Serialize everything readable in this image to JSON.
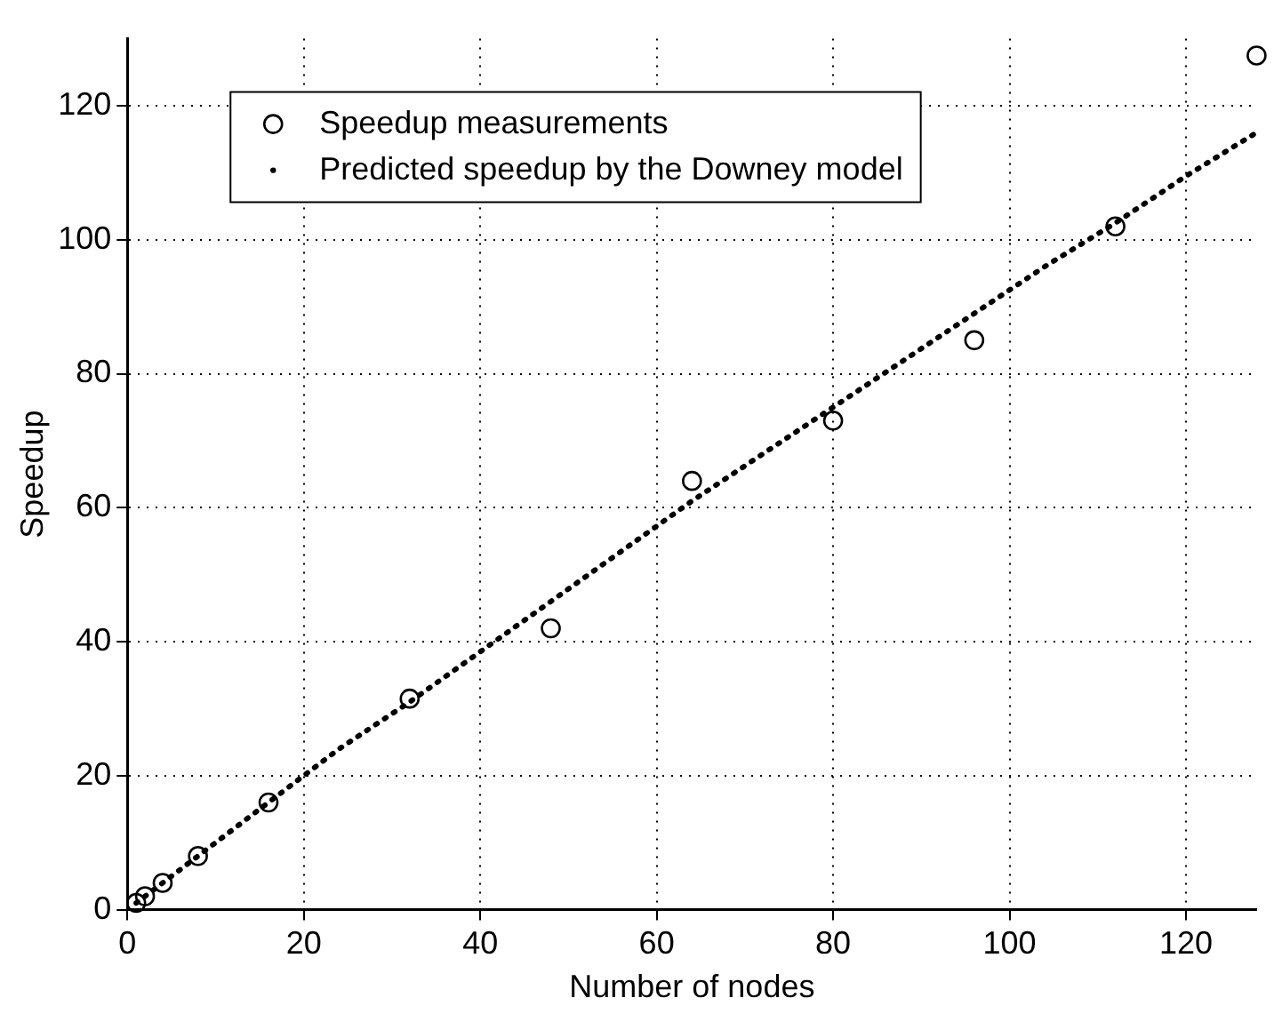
{
  "chart_data": {
    "type": "line",
    "xlabel": "Number of nodes",
    "ylabel": "Speedup",
    "xlim": [
      0,
      128
    ],
    "xticks": [
      0,
      20,
      40,
      60,
      80,
      100,
      120
    ],
    "ylim": [
      0,
      130
    ],
    "yticks": [
      0,
      20,
      40,
      60,
      80,
      100,
      120
    ],
    "grid": true,
    "legend": "top left",
    "series": [
      {
        "name": "Speedup measurements",
        "type": "scatter",
        "marker": "circle",
        "color": "#000000",
        "x": [
          1,
          2,
          4,
          8,
          16,
          32,
          48,
          64,
          80,
          96,
          112,
          128
        ],
        "values": [
          1,
          2,
          4,
          8,
          16,
          31.5,
          42,
          64,
          73,
          85,
          102,
          127.5
        ]
      },
      {
        "name": "Predicted speedup by the Downey model",
        "type": "line",
        "marker": "none",
        "line_style": "dotted",
        "color": "#000000",
        "x": [
          1,
          2,
          4,
          8,
          16,
          24,
          32,
          40,
          48,
          56,
          64,
          72,
          80,
          88,
          96,
          104,
          112,
          120,
          128
        ],
        "values": [
          1,
          2,
          4,
          8,
          16,
          24,
          31,
          38.5,
          46,
          53.5,
          61,
          68,
          75,
          82,
          89,
          96,
          102.5,
          109.5,
          116
        ]
      }
    ]
  }
}
